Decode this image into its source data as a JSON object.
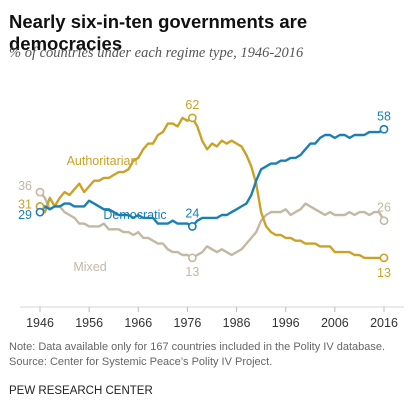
{
  "title": "Nearly six-in-ten governments are democracies",
  "subtitle": "% of countries under each regime type, 1946-2016",
  "notes": [
    "Note: Data available only for 167 countries included in the Polity IV database.",
    "Source: Center for Systemic Peace’s Polity IV Project."
  ],
  "source_org": "PEW RESEARCH CENTER",
  "chart_data": {
    "type": "line",
    "title": "Nearly six-in-ten governments are democracies",
    "subtitle": "% of countries under each regime type, 1946-2016",
    "xlabel": "",
    "ylabel": "",
    "xlim": [
      1946,
      2016
    ],
    "ylim": [
      0,
      70
    ],
    "x_ticks": [
      1946,
      1956,
      1966,
      1976,
      1986,
      1996,
      2006,
      2016
    ],
    "grid": false,
    "legend": "inline labels",
    "series": [
      {
        "name": "Authoritarian",
        "color": "#c9a227",
        "points": [
          [
            1946,
            31
          ],
          [
            1947,
            29
          ],
          [
            1948,
            34
          ],
          [
            1949,
            31
          ],
          [
            1950,
            34
          ],
          [
            1951,
            36
          ],
          [
            1952,
            35
          ],
          [
            1953,
            37
          ],
          [
            1954,
            39
          ],
          [
            1955,
            36
          ],
          [
            1956,
            38
          ],
          [
            1957,
            40
          ],
          [
            1958,
            40
          ],
          [
            1959,
            41
          ],
          [
            1960,
            41
          ],
          [
            1961,
            42
          ],
          [
            1962,
            43
          ],
          [
            1963,
            43
          ],
          [
            1964,
            44
          ],
          [
            1965,
            47
          ],
          [
            1966,
            48
          ],
          [
            1967,
            51
          ],
          [
            1968,
            53
          ],
          [
            1969,
            53
          ],
          [
            1970,
            56
          ],
          [
            1971,
            57
          ],
          [
            1972,
            60
          ],
          [
            1973,
            60
          ],
          [
            1974,
            59
          ],
          [
            1975,
            62
          ],
          [
            1976,
            61
          ],
          [
            1977,
            62
          ],
          [
            1978,
            59
          ],
          [
            1979,
            54
          ],
          [
            1980,
            51
          ],
          [
            1981,
            53
          ],
          [
            1982,
            52
          ],
          [
            1983,
            54
          ],
          [
            1984,
            53
          ],
          [
            1985,
            54
          ],
          [
            1986,
            53
          ],
          [
            1987,
            52
          ],
          [
            1988,
            49
          ],
          [
            1989,
            45
          ],
          [
            1990,
            39
          ],
          [
            1991,
            29
          ],
          [
            1992,
            24
          ],
          [
            1993,
            22
          ],
          [
            1994,
            21
          ],
          [
            1995,
            21
          ],
          [
            1996,
            20
          ],
          [
            1997,
            20
          ],
          [
            1998,
            19
          ],
          [
            1999,
            19
          ],
          [
            2000,
            18
          ],
          [
            2001,
            18
          ],
          [
            2002,
            18
          ],
          [
            2003,
            17
          ],
          [
            2004,
            17
          ],
          [
            2005,
            17
          ],
          [
            2006,
            15
          ],
          [
            2007,
            15
          ],
          [
            2008,
            15
          ],
          [
            2009,
            15
          ],
          [
            2010,
            14
          ],
          [
            2011,
            14
          ],
          [
            2012,
            13
          ],
          [
            2013,
            13
          ],
          [
            2014,
            13
          ],
          [
            2015,
            13
          ],
          [
            2016,
            13
          ]
        ],
        "end_labels": [
          [
            1946,
            31
          ],
          [
            1977,
            62
          ],
          [
            2016,
            13
          ]
        ]
      },
      {
        "name": "Democratic",
        "color": "#1a7fb5",
        "points": [
          [
            1946,
            29
          ],
          [
            1947,
            31
          ],
          [
            1948,
            30
          ],
          [
            1949,
            31
          ],
          [
            1950,
            31
          ],
          [
            1951,
            32
          ],
          [
            1952,
            32
          ],
          [
            1953,
            31
          ],
          [
            1954,
            31
          ],
          [
            1955,
            31
          ],
          [
            1956,
            33
          ],
          [
            1957,
            32
          ],
          [
            1958,
            31
          ],
          [
            1959,
            30
          ],
          [
            1960,
            30
          ],
          [
            1961,
            29
          ],
          [
            1962,
            28
          ],
          [
            1963,
            28
          ],
          [
            1964,
            28
          ],
          [
            1965,
            27
          ],
          [
            1966,
            28
          ],
          [
            1967,
            27
          ],
          [
            1968,
            27
          ],
          [
            1969,
            27
          ],
          [
            1970,
            25
          ],
          [
            1971,
            25
          ],
          [
            1972,
            25
          ],
          [
            1973,
            26
          ],
          [
            1974,
            25
          ],
          [
            1975,
            25
          ],
          [
            1976,
            25
          ],
          [
            1977,
            24
          ],
          [
            1978,
            26
          ],
          [
            1979,
            27
          ],
          [
            1980,
            27
          ],
          [
            1981,
            27
          ],
          [
            1982,
            27
          ],
          [
            1983,
            28
          ],
          [
            1984,
            28
          ],
          [
            1985,
            29
          ],
          [
            1986,
            30
          ],
          [
            1987,
            31
          ],
          [
            1988,
            32
          ],
          [
            1989,
            35
          ],
          [
            1990,
            40
          ],
          [
            1991,
            44
          ],
          [
            1992,
            45
          ],
          [
            1993,
            46
          ],
          [
            1994,
            46
          ],
          [
            1995,
            47
          ],
          [
            1996,
            47
          ],
          [
            1997,
            48
          ],
          [
            1998,
            48
          ],
          [
            1999,
            49
          ],
          [
            2000,
            51
          ],
          [
            2001,
            53
          ],
          [
            2002,
            53
          ],
          [
            2003,
            55
          ],
          [
            2004,
            56
          ],
          [
            2005,
            56
          ],
          [
            2006,
            55
          ],
          [
            2007,
            56
          ],
          [
            2008,
            56
          ],
          [
            2009,
            55
          ],
          [
            2010,
            56
          ],
          [
            2011,
            56
          ],
          [
            2012,
            56
          ],
          [
            2013,
            57
          ],
          [
            2014,
            57
          ],
          [
            2015,
            57
          ],
          [
            2016,
            58
          ]
        ],
        "end_labels": [
          [
            1946,
            29
          ],
          [
            1977,
            24
          ],
          [
            2016,
            58
          ]
        ]
      },
      {
        "name": "Mixed",
        "color": "#c2b8a3",
        "points": [
          [
            1946,
            36
          ],
          [
            1947,
            34
          ],
          [
            1948,
            30
          ],
          [
            1949,
            31
          ],
          [
            1950,
            31
          ],
          [
            1951,
            29
          ],
          [
            1952,
            28
          ],
          [
            1953,
            27
          ],
          [
            1954,
            25
          ],
          [
            1955,
            25
          ],
          [
            1956,
            24
          ],
          [
            1957,
            24
          ],
          [
            1958,
            24
          ],
          [
            1959,
            25
          ],
          [
            1960,
            23
          ],
          [
            1961,
            23
          ],
          [
            1962,
            23
          ],
          [
            1963,
            22
          ],
          [
            1964,
            22
          ],
          [
            1965,
            21
          ],
          [
            1966,
            22
          ],
          [
            1967,
            20
          ],
          [
            1968,
            20
          ],
          [
            1969,
            19
          ],
          [
            1970,
            18
          ],
          [
            1971,
            18
          ],
          [
            1972,
            16
          ],
          [
            1973,
            15
          ],
          [
            1974,
            15
          ],
          [
            1975,
            14
          ],
          [
            1976,
            14
          ],
          [
            1977,
            13
          ],
          [
            1978,
            14
          ],
          [
            1979,
            15
          ],
          [
            1980,
            17
          ],
          [
            1981,
            16
          ],
          [
            1982,
            15
          ],
          [
            1983,
            16
          ],
          [
            1984,
            15
          ],
          [
            1985,
            14
          ],
          [
            1986,
            15
          ],
          [
            1987,
            16
          ],
          [
            1988,
            18
          ],
          [
            1989,
            20
          ],
          [
            1990,
            22
          ],
          [
            1991,
            26
          ],
          [
            1992,
            28
          ],
          [
            1993,
            29
          ],
          [
            1994,
            29
          ],
          [
            1995,
            29
          ],
          [
            1996,
            30
          ],
          [
            1997,
            28
          ],
          [
            1998,
            29
          ],
          [
            1999,
            30
          ],
          [
            2000,
            32
          ],
          [
            2001,
            31
          ],
          [
            2002,
            30
          ],
          [
            2003,
            29
          ],
          [
            2004,
            28
          ],
          [
            2005,
            29
          ],
          [
            2006,
            28
          ],
          [
            2007,
            28
          ],
          [
            2008,
            28
          ],
          [
            2009,
            29
          ],
          [
            2010,
            28
          ],
          [
            2011,
            29
          ],
          [
            2012,
            29
          ],
          [
            2013,
            28
          ],
          [
            2014,
            29
          ],
          [
            2015,
            29
          ],
          [
            2016,
            26
          ]
        ],
        "end_labels": [
          [
            1946,
            36
          ],
          [
            1977,
            13
          ],
          [
            2016,
            26
          ]
        ]
      }
    ]
  }
}
